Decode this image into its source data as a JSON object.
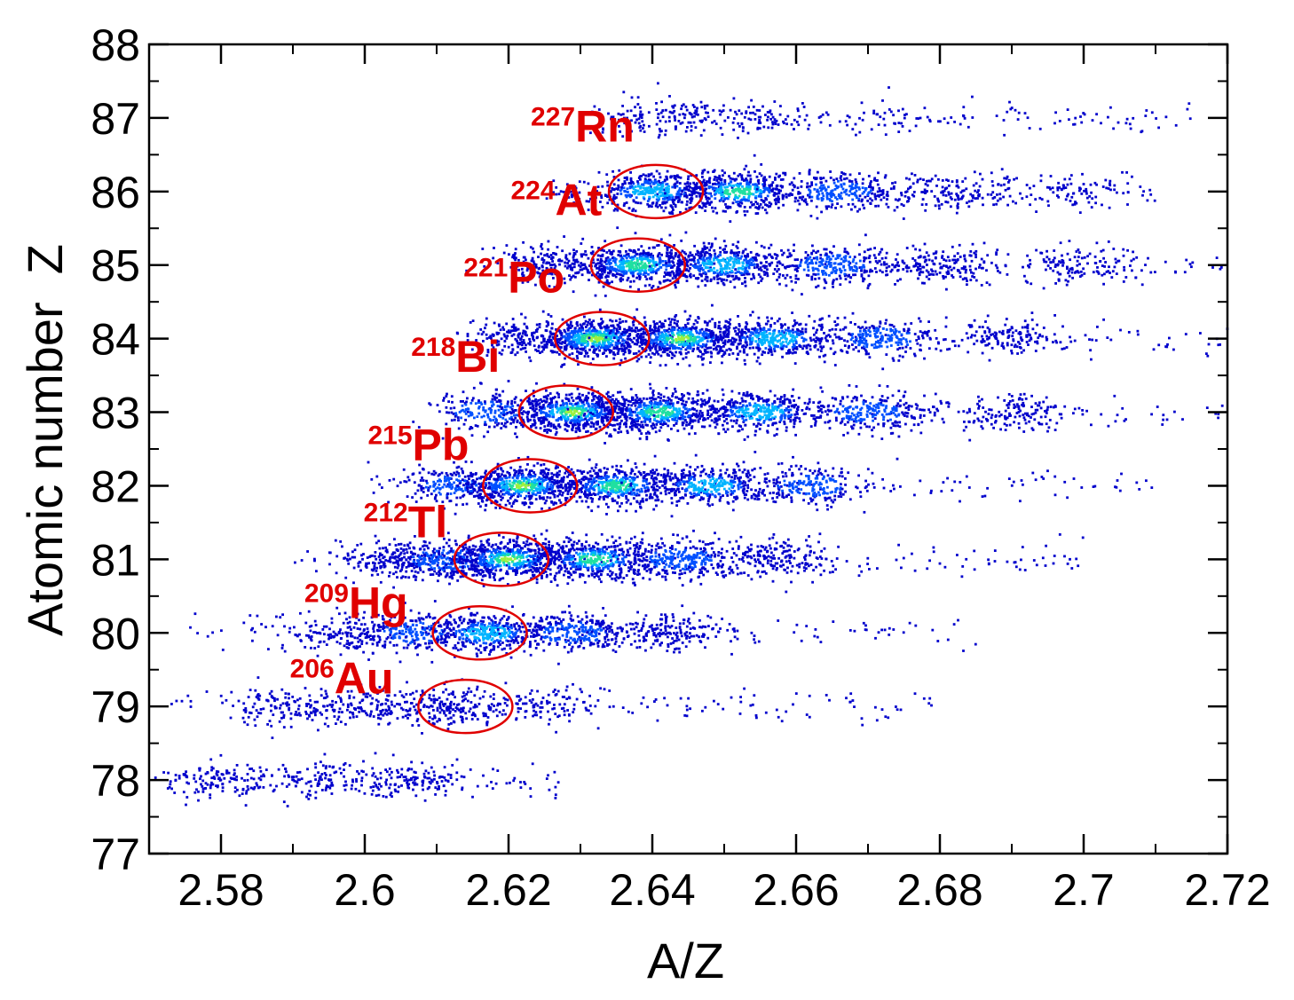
{
  "chart_data": {
    "type": "scatter",
    "title": "",
    "xlabel": "A/Z",
    "ylabel": "Atomic number  Z",
    "xlim": [
      2.57,
      2.72
    ],
    "ylim": [
      77,
      88
    ],
    "x_ticks": [
      "2.58",
      "2.6",
      "2.62",
      "2.64",
      "2.66",
      "2.68",
      "2.7",
      "2.72"
    ],
    "y_ticks": [
      "77",
      "78",
      "79",
      "80",
      "81",
      "82",
      "83",
      "84",
      "85",
      "86",
      "87",
      "88"
    ],
    "grid": false,
    "marker_color": "#0000cc",
    "density_colors": [
      "#0000cc",
      "#0050ff",
      "#00b4ff",
      "#20e0a0",
      "#9cf040"
    ],
    "annotation_color": "#e00000",
    "bands": [
      {
        "z": 78,
        "x_start": 2.572,
        "x_end": 2.627,
        "clusters": [
          {
            "x": 2.58,
            "w": 0.6
          },
          {
            "x": 2.595,
            "w": 0.5
          },
          {
            "x": 2.606,
            "w": 0.6
          }
        ]
      },
      {
        "z": 79,
        "x_start": 2.571,
        "x_end": 2.68,
        "clusters": [
          {
            "x": 2.588,
            "w": 0.6
          },
          {
            "x": 2.6,
            "w": 0.8
          },
          {
            "x": 2.612,
            "w": 1.0
          },
          {
            "x": 2.625,
            "w": 0.6
          }
        ]
      },
      {
        "z": 80,
        "x_start": 2.575,
        "x_end": 2.685,
        "clusters": [
          {
            "x": 2.597,
            "w": 0.8
          },
          {
            "x": 2.607,
            "w": 1.2
          },
          {
            "x": 2.617,
            "w": 2.2
          },
          {
            "x": 2.629,
            "w": 1.6
          },
          {
            "x": 2.642,
            "w": 1.0
          }
        ]
      },
      {
        "z": 81,
        "x_start": 2.59,
        "x_end": 2.7,
        "clusters": [
          {
            "x": 2.604,
            "w": 1.0
          },
          {
            "x": 2.611,
            "w": 1.8
          },
          {
            "x": 2.62,
            "w": 3.2
          },
          {
            "x": 2.632,
            "w": 2.6
          },
          {
            "x": 2.644,
            "w": 1.8
          },
          {
            "x": 2.657,
            "w": 1.0
          }
        ]
      },
      {
        "z": 82,
        "x_start": 2.6,
        "x_end": 2.71,
        "clusters": [
          {
            "x": 2.613,
            "w": 1.2
          },
          {
            "x": 2.622,
            "w": 3.2
          },
          {
            "x": 2.635,
            "w": 2.8
          },
          {
            "x": 2.648,
            "w": 2.0
          },
          {
            "x": 2.662,
            "w": 1.2
          }
        ]
      },
      {
        "z": 83,
        "x_start": 2.61,
        "x_end": 2.72,
        "clusters": [
          {
            "x": 2.617,
            "w": 1.2
          },
          {
            "x": 2.629,
            "w": 3.4
          },
          {
            "x": 2.641,
            "w": 3.0
          },
          {
            "x": 2.655,
            "w": 2.2
          },
          {
            "x": 2.67,
            "w": 1.4
          },
          {
            "x": 2.69,
            "w": 0.8
          }
        ]
      },
      {
        "z": 84,
        "x_start": 2.615,
        "x_end": 2.72,
        "clusters": [
          {
            "x": 2.622,
            "w": 1.0
          },
          {
            "x": 2.632,
            "w": 3.6
          },
          {
            "x": 2.644,
            "w": 3.2
          },
          {
            "x": 2.657,
            "w": 2.4
          },
          {
            "x": 2.672,
            "w": 1.4
          },
          {
            "x": 2.69,
            "w": 0.8
          }
        ]
      },
      {
        "z": 85,
        "x_start": 2.62,
        "x_end": 2.72,
        "clusters": [
          {
            "x": 2.626,
            "w": 1.0
          },
          {
            "x": 2.638,
            "w": 3.0
          },
          {
            "x": 2.65,
            "w": 2.4
          },
          {
            "x": 2.665,
            "w": 1.6
          },
          {
            "x": 2.68,
            "w": 1.0
          },
          {
            "x": 2.7,
            "w": 0.7
          }
        ]
      },
      {
        "z": 86,
        "x_start": 2.625,
        "x_end": 2.71,
        "clusters": [
          {
            "x": 2.64,
            "w": 2.4
          },
          {
            "x": 2.652,
            "w": 2.6
          },
          {
            "x": 2.666,
            "w": 1.4
          },
          {
            "x": 2.682,
            "w": 0.8
          },
          {
            "x": 2.7,
            "w": 0.4
          }
        ]
      },
      {
        "z": 87,
        "x_start": 2.63,
        "x_end": 2.715,
        "clusters": [
          {
            "x": 2.642,
            "w": 0.7
          },
          {
            "x": 2.655,
            "w": 0.4
          },
          {
            "x": 2.672,
            "w": 0.2
          }
        ]
      }
    ],
    "annotations": [
      {
        "mass": "227",
        "element": "Rn",
        "label_x": 2.6375,
        "label_z": 86.68,
        "ellipse_cx": 2.6405,
        "ellipse_cz": 86.0
      },
      {
        "mass": "224",
        "element": "At",
        "label_x": 2.633,
        "label_z": 85.68,
        "ellipse_cx": 2.638,
        "ellipse_cz": 85.0
      },
      {
        "mass": "221",
        "element": "Po",
        "label_x": 2.6278,
        "label_z": 84.63,
        "ellipse_cx": 2.633,
        "ellipse_cz": 84.0
      },
      {
        "mass": "218",
        "element": "Bi",
        "label_x": 2.6188,
        "label_z": 83.55,
        "ellipse_cx": 2.628,
        "ellipse_cz": 83.0
      },
      {
        "mass": "215",
        "element": "Pb",
        "label_x": 2.6145,
        "label_z": 82.35,
        "ellipse_cx": 2.623,
        "ellipse_cz": 82.0
      },
      {
        "mass": "212",
        "element": "Tl",
        "label_x": 2.6115,
        "label_z": 81.3,
        "ellipse_cx": 2.619,
        "ellipse_cz": 81.0
      },
      {
        "mass": "209",
        "element": "Hg",
        "label_x": 2.606,
        "label_z": 80.2,
        "ellipse_cx": 2.616,
        "ellipse_cz": 80.0
      },
      {
        "mass": "206",
        "element": "Au",
        "label_x": 2.604,
        "label_z": 79.18,
        "ellipse_cx": 2.614,
        "ellipse_cz": 79.0
      }
    ]
  }
}
